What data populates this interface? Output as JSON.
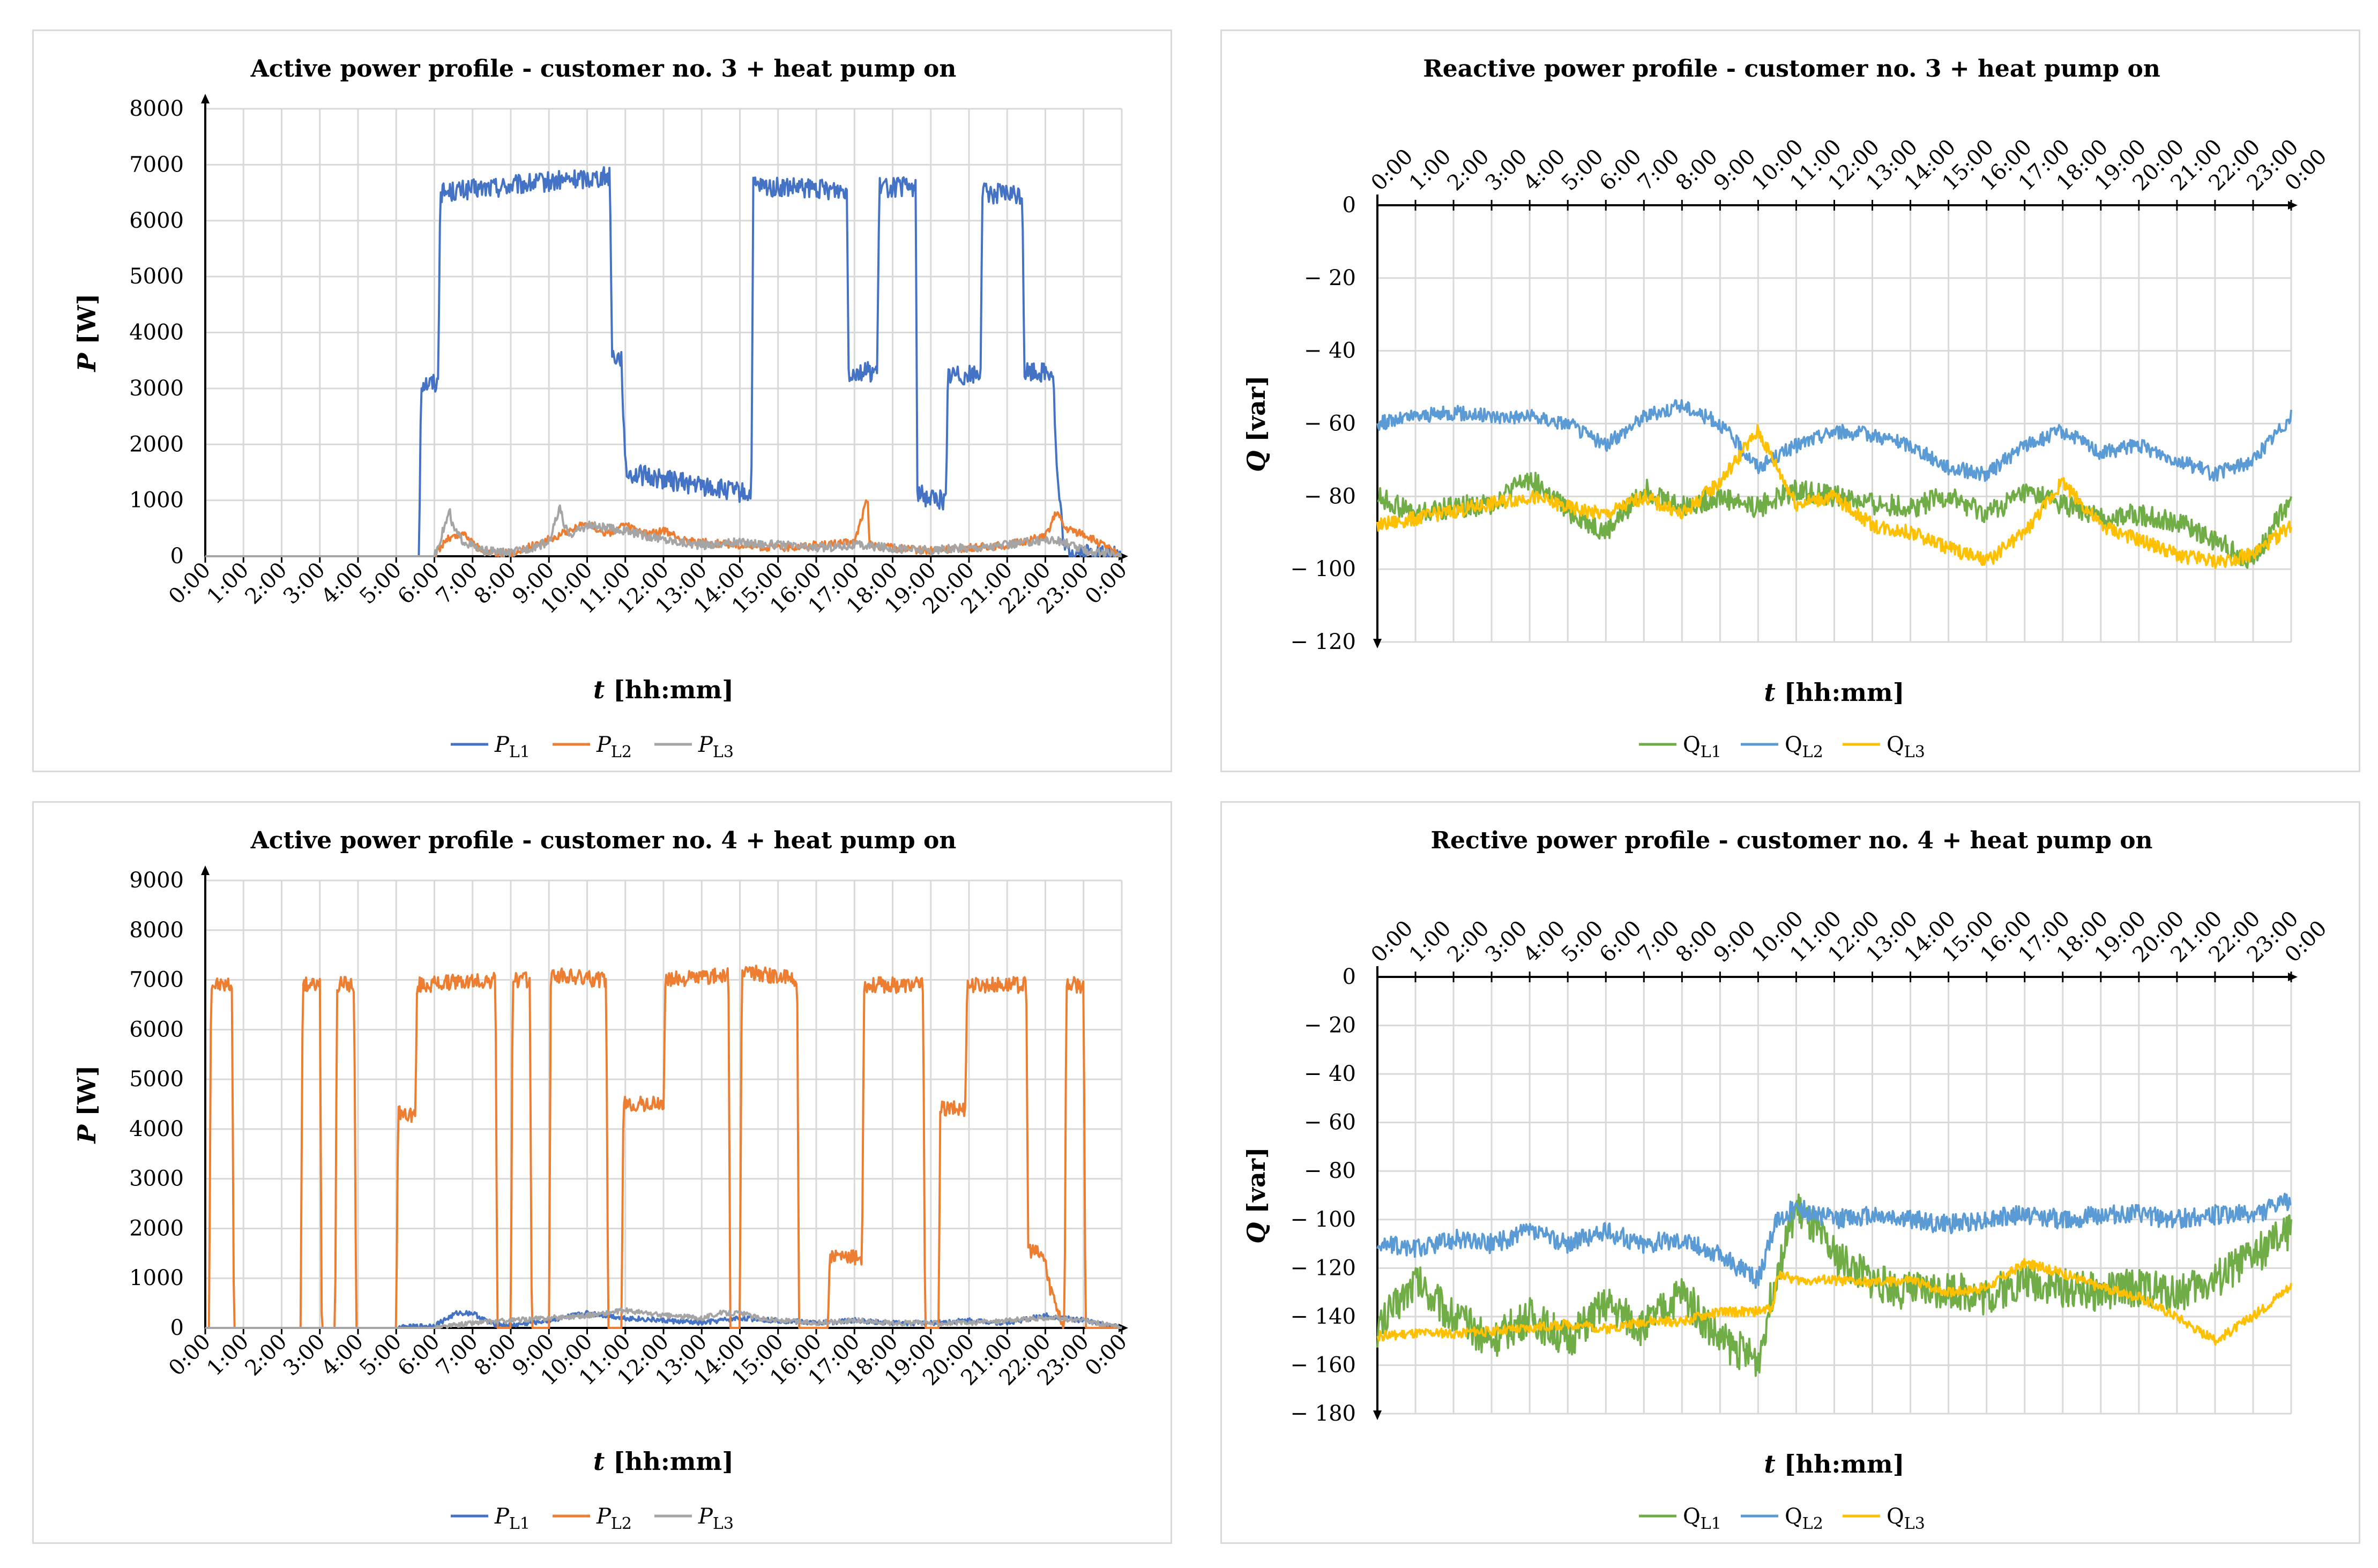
{
  "chart_data": [
    {
      "id": "c1",
      "type": "line",
      "title": "Active power profile - customer no. 3 + heat pump on",
      "ylabel_var": "P",
      "ylabel_unit": " [W]",
      "xlabel_var": "t",
      "xlabel_unit": " [hh:mm]",
      "ylim": [
        0,
        8000
      ],
      "yticks": [
        0,
        1000,
        2000,
        3000,
        4000,
        5000,
        6000,
        7000,
        8000
      ],
      "x_axis_position": "bottom",
      "xtick_labels": [
        "0:00",
        "1:00",
        "2:00",
        "3:00",
        "4:00",
        "5:00",
        "6:00",
        "7:00",
        "8:00",
        "9:00",
        "10:00",
        "11:00",
        "12:00",
        "13:00",
        "14:00",
        "15:00",
        "16:00",
        "17:00",
        "18:00",
        "19:00",
        "20:00",
        "21:00",
        "22:00",
        "23:00",
        "0:00"
      ],
      "series": [
        {
          "name": "P",
          "sub": "L1",
          "color": "#4472c4",
          "x": [
            0,
            5.6,
            5.65,
            6.1,
            6.15,
            10.6,
            10.65,
            10.9,
            11,
            14.3,
            14.35,
            16.8,
            16.85,
            17.6,
            17.65,
            18.6,
            18.65,
            19.4,
            19.45,
            20.3,
            20.35,
            21.4,
            21.45,
            22.2,
            22.3,
            22.5,
            23,
            24
          ],
          "y": [
            0,
            0,
            3100,
            3100,
            6500,
            6800,
            3600,
            3550,
            1500,
            1100,
            6600,
            6550,
            3300,
            3300,
            6600,
            6600,
            1100,
            1000,
            3250,
            3250,
            6500,
            6450,
            3300,
            3300,
            1500,
            100,
            50,
            0
          ],
          "noise": 180
        },
        {
          "name": "P",
          "sub": "L2",
          "color": "#ed7d31",
          "x": [
            0,
            6,
            6.3,
            6.8,
            7.2,
            8,
            9,
            10,
            10.5,
            11,
            11.5,
            12,
            12.5,
            13,
            14,
            15,
            16,
            17,
            17.3,
            17.35,
            17.4,
            18,
            19,
            20,
            21,
            22,
            22.3,
            22.5,
            23,
            23.5,
            24
          ],
          "y": [
            0,
            0,
            300,
            400,
            100,
            50,
            300,
            600,
            400,
            550,
            400,
            450,
            300,
            250,
            200,
            150,
            200,
            250,
            950,
            950,
            200,
            150,
            100,
            150,
            200,
            350,
            800,
            500,
            400,
            200,
            0
          ],
          "noise": 70
        },
        {
          "name": "P",
          "sub": "L3",
          "color": "#a5a5a5",
          "x": [
            0,
            6,
            6.4,
            6.5,
            6.7,
            7.2,
            8,
            9,
            9.3,
            9.4,
            9.6,
            10,
            11,
            12,
            13,
            14,
            15,
            16,
            17,
            18,
            19,
            20,
            21,
            22,
            22.5,
            23,
            24
          ],
          "y": [
            0,
            0,
            800,
            500,
            300,
            100,
            50,
            250,
            900,
            500,
            400,
            550,
            450,
            300,
            200,
            250,
            200,
            150,
            200,
            150,
            100,
            150,
            200,
            300,
            250,
            100,
            0
          ],
          "noise": 80
        }
      ]
    },
    {
      "id": "c2",
      "type": "line",
      "title": "Reactive power profile - customer no. 3 + heat pump on",
      "ylabel_var": "Q",
      "ylabel_unit": " [var]",
      "xlabel_var": "t",
      "xlabel_unit": " [hh:mm]",
      "ylim": [
        -120,
        0
      ],
      "yticks": [
        0,
        -20,
        -40,
        -60,
        -80,
        -100,
        -120
      ],
      "ytick_labels": [
        "0",
        "− 20",
        "− 40",
        "− 60",
        "− 80",
        "− 100",
        "− 120"
      ],
      "x_axis_position": "top",
      "xtick_labels": [
        "0:00",
        "1:00",
        "2:00",
        "3:00",
        "4:00",
        "5:00",
        "6:00",
        "7:00",
        "8:00",
        "9:00",
        "10:00",
        "11:00",
        "12:00",
        "13:00",
        "14:00",
        "15:00",
        "16:00",
        "17:00",
        "18:00",
        "19:00",
        "20:00",
        "21:00",
        "22:00",
        "23:00",
        "0:00"
      ],
      "series": [
        {
          "name": "Q",
          "sub": "L1",
          "color": "#70ad47",
          "x": [
            0,
            1,
            2,
            3,
            4,
            5,
            6,
            7,
            8,
            9,
            10,
            11,
            12,
            13,
            14,
            15,
            16,
            17,
            18,
            19,
            20,
            21,
            22,
            23,
            24
          ],
          "y": [
            -80,
            -85,
            -83,
            -82,
            -75,
            -84,
            -90,
            -78,
            -83,
            -80,
            -83,
            -78,
            -80,
            -82,
            -83,
            -80,
            -85,
            -79,
            -82,
            -86,
            -85,
            -87,
            -92,
            -98,
            -80
          ],
          "noise": 3
        },
        {
          "name": "Q",
          "sub": "L2",
          "color": "#5b9bd5",
          "x": [
            0,
            1,
            2,
            3,
            4,
            5,
            6,
            7,
            8,
            9,
            10,
            11,
            12,
            13,
            14,
            15,
            16,
            17,
            18,
            19,
            20,
            21,
            22,
            23,
            24
          ],
          "y": [
            -60,
            -58,
            -57,
            -58,
            -58,
            -60,
            -66,
            -58,
            -55,
            -60,
            -72,
            -66,
            -62,
            -63,
            -66,
            -72,
            -74,
            -66,
            -62,
            -68,
            -66,
            -70,
            -74,
            -70,
            -58
          ],
          "noise": 2
        },
        {
          "name": "Q",
          "sub": "L3",
          "color": "#ffc000",
          "x": [
            0,
            1,
            2,
            3,
            4,
            5,
            6,
            7,
            8,
            9,
            10,
            11,
            12,
            13,
            14,
            15,
            16,
            17,
            18,
            19,
            20,
            21,
            22,
            23,
            24
          ],
          "y": [
            -88,
            -86,
            -84,
            -82,
            -80,
            -83,
            -85,
            -80,
            -85,
            -76,
            -62,
            -82,
            -80,
            -88,
            -90,
            -94,
            -98,
            -90,
            -76,
            -88,
            -92,
            -96,
            -98,
            -96,
            -88
          ],
          "noise": 2
        }
      ]
    },
    {
      "id": "c3",
      "type": "line",
      "title": "Active power profile - customer no. 4 + heat pump on",
      "ylabel_var": "P",
      "ylabel_unit": " [W]",
      "xlabel_var": "t",
      "xlabel_unit": " [hh:mm]",
      "ylim": [
        0,
        9000
      ],
      "yticks": [
        0,
        1000,
        2000,
        3000,
        4000,
        5000,
        6000,
        7000,
        8000,
        9000
      ],
      "x_axis_position": "bottom",
      "xtick_labels": [
        "0:00",
        "1:00",
        "2:00",
        "3:00",
        "4:00",
        "5:00",
        "6:00",
        "7:00",
        "8:00",
        "9:00",
        "10:00",
        "11:00",
        "12:00",
        "13:00",
        "14:00",
        "15:00",
        "16:00",
        "17:00",
        "18:00",
        "19:00",
        "20:00",
        "21:00",
        "22:00",
        "23:00",
        "0:00"
      ],
      "series": [
        {
          "name": "P",
          "sub": "L1",
          "color": "#4472c4",
          "x": [
            0,
            5,
            6,
            6.6,
            7,
            7.5,
            8,
            9,
            10,
            10.5,
            11,
            12,
            13,
            14,
            15,
            16,
            17,
            18,
            19,
            20,
            21,
            22,
            22.5,
            23,
            24
          ],
          "y": [
            0,
            0,
            50,
            300,
            300,
            80,
            50,
            150,
            300,
            250,
            200,
            150,
            100,
            200,
            150,
            100,
            150,
            100,
            100,
            150,
            100,
            250,
            200,
            150,
            0
          ],
          "noise": 50
        },
        {
          "name": "P",
          "sub": "L2",
          "color": "#ed7d31",
          "x": [
            0,
            0.1,
            0.15,
            0.7,
            0.75,
            2.5,
            2.55,
            3,
            3.05,
            3.4,
            3.45,
            3.9,
            3.95,
            5,
            5.05,
            5.5,
            5.55,
            7.6,
            7.65,
            8,
            8.05,
            8.5,
            8.55,
            9,
            9.05,
            10.5,
            10.55,
            10.9,
            10.95,
            12,
            12.05,
            13.7,
            13.75,
            14,
            14.05,
            15.5,
            15.55,
            16.3,
            16.35,
            17.2,
            17.25,
            18.8,
            18.85,
            19.2,
            19.25,
            19.9,
            19.95,
            21.5,
            21.55,
            22,
            22.05,
            22.5,
            22.55,
            23,
            23.05,
            23.5,
            23.55,
            24
          ],
          "y": [
            0,
            0,
            6900,
            6900,
            0,
            0,
            6900,
            6900,
            0,
            0,
            6900,
            6900,
            0,
            0,
            4300,
            4300,
            6900,
            7000,
            0,
            0,
            7000,
            7000,
            0,
            0,
            7100,
            7000,
            0,
            0,
            4500,
            4500,
            7000,
            7100,
            0,
            0,
            7200,
            7000,
            0,
            0,
            1400,
            1400,
            6900,
            6900,
            0,
            0,
            4400,
            4400,
            6900,
            6900,
            1600,
            1400,
            1000,
            0,
            6900,
            6900,
            0,
            0,
            0,
            0
          ],
          "noise": 160
        },
        {
          "name": "P",
          "sub": "L3",
          "color": "#a5a5a5",
          "x": [
            0,
            6,
            7,
            8,
            9,
            10,
            11,
            12,
            13,
            13.5,
            14,
            14.5,
            15,
            16,
            17,
            18,
            19,
            20,
            21,
            22,
            23,
            24
          ],
          "y": [
            0,
            0,
            100,
            150,
            200,
            250,
            350,
            250,
            200,
            300,
            300,
            200,
            150,
            100,
            150,
            100,
            100,
            100,
            150,
            200,
            150,
            0
          ],
          "noise": 50
        }
      ]
    },
    {
      "id": "c4",
      "type": "line",
      "title": "Rective power profile - customer no. 4 + heat pump on",
      "ylabel_var": "Q",
      "ylabel_unit": " [var]",
      "xlabel_var": "t",
      "xlabel_unit": " [hh:mm]",
      "ylim": [
        -180,
        0
      ],
      "yticks": [
        0,
        -20,
        -40,
        -60,
        -80,
        -100,
        -120,
        -140,
        -160,
        -180
      ],
      "ytick_labels": [
        "0",
        "− 20",
        "− 40",
        "− 60",
        "− 80",
        "− 100",
        "− 120",
        "− 140",
        "− 160",
        "− 180"
      ],
      "x_axis_position": "top",
      "xtick_labels": [
        "0:00",
        "1:00",
        "2:00",
        "3:00",
        "4:00",
        "5:00",
        "6:00",
        "7:00",
        "8:00",
        "9:00",
        "10:00",
        "11:00",
        "12:00",
        "13:00",
        "14:00",
        "15:00",
        "16:00",
        "17:00",
        "18:00",
        "19:00",
        "20:00",
        "21:00",
        "22:00",
        "23:00",
        "0:00"
      ],
      "series": [
        {
          "name": "Q",
          "sub": "L1",
          "color": "#70ad47",
          "x": [
            0,
            1,
            2,
            3,
            4,
            5,
            6,
            7,
            8,
            9,
            10,
            10.5,
            11,
            12,
            13,
            14,
            15,
            16,
            17,
            18,
            19,
            20,
            21,
            22,
            23,
            24
          ],
          "y": [
            -145,
            -125,
            -140,
            -150,
            -140,
            -150,
            -135,
            -145,
            -130,
            -150,
            -158,
            -120,
            -95,
            -115,
            -125,
            -130,
            -128,
            -132,
            -125,
            -128,
            -130,
            -128,
            -130,
            -125,
            -115,
            -105
          ],
          "noise": 8
        },
        {
          "name": "Q",
          "sub": "L2",
          "color": "#5b9bd5",
          "x": [
            0,
            1,
            2,
            3,
            4,
            5,
            6,
            7,
            8,
            9,
            10,
            10.5,
            11,
            12,
            13,
            14,
            15,
            16,
            17,
            18,
            19,
            20,
            21,
            22,
            23,
            24
          ],
          "y": [
            -110,
            -112,
            -108,
            -110,
            -105,
            -110,
            -105,
            -110,
            -108,
            -115,
            -125,
            -100,
            -95,
            -100,
            -98,
            -100,
            -102,
            -100,
            -98,
            -100,
            -98,
            -98,
            -100,
            -98,
            -98,
            -92
          ],
          "noise": 4
        },
        {
          "name": "Q",
          "sub": "L3",
          "color": "#ffc000",
          "x": [
            0,
            1,
            2,
            3,
            4,
            5,
            6,
            7,
            8,
            9,
            10,
            10.4,
            10.5,
            11,
            12,
            13,
            14,
            15,
            16,
            17,
            18,
            19,
            20,
            21,
            22,
            23,
            24
          ],
          "y": [
            -148,
            -147,
            -147,
            -146,
            -145,
            -143,
            -145,
            -142,
            -142,
            -138,
            -138,
            -136,
            -122,
            -125,
            -125,
            -126,
            -125,
            -130,
            -128,
            -118,
            -122,
            -128,
            -132,
            -140,
            -150,
            -140,
            -127
          ],
          "noise": 2
        }
      ]
    }
  ]
}
